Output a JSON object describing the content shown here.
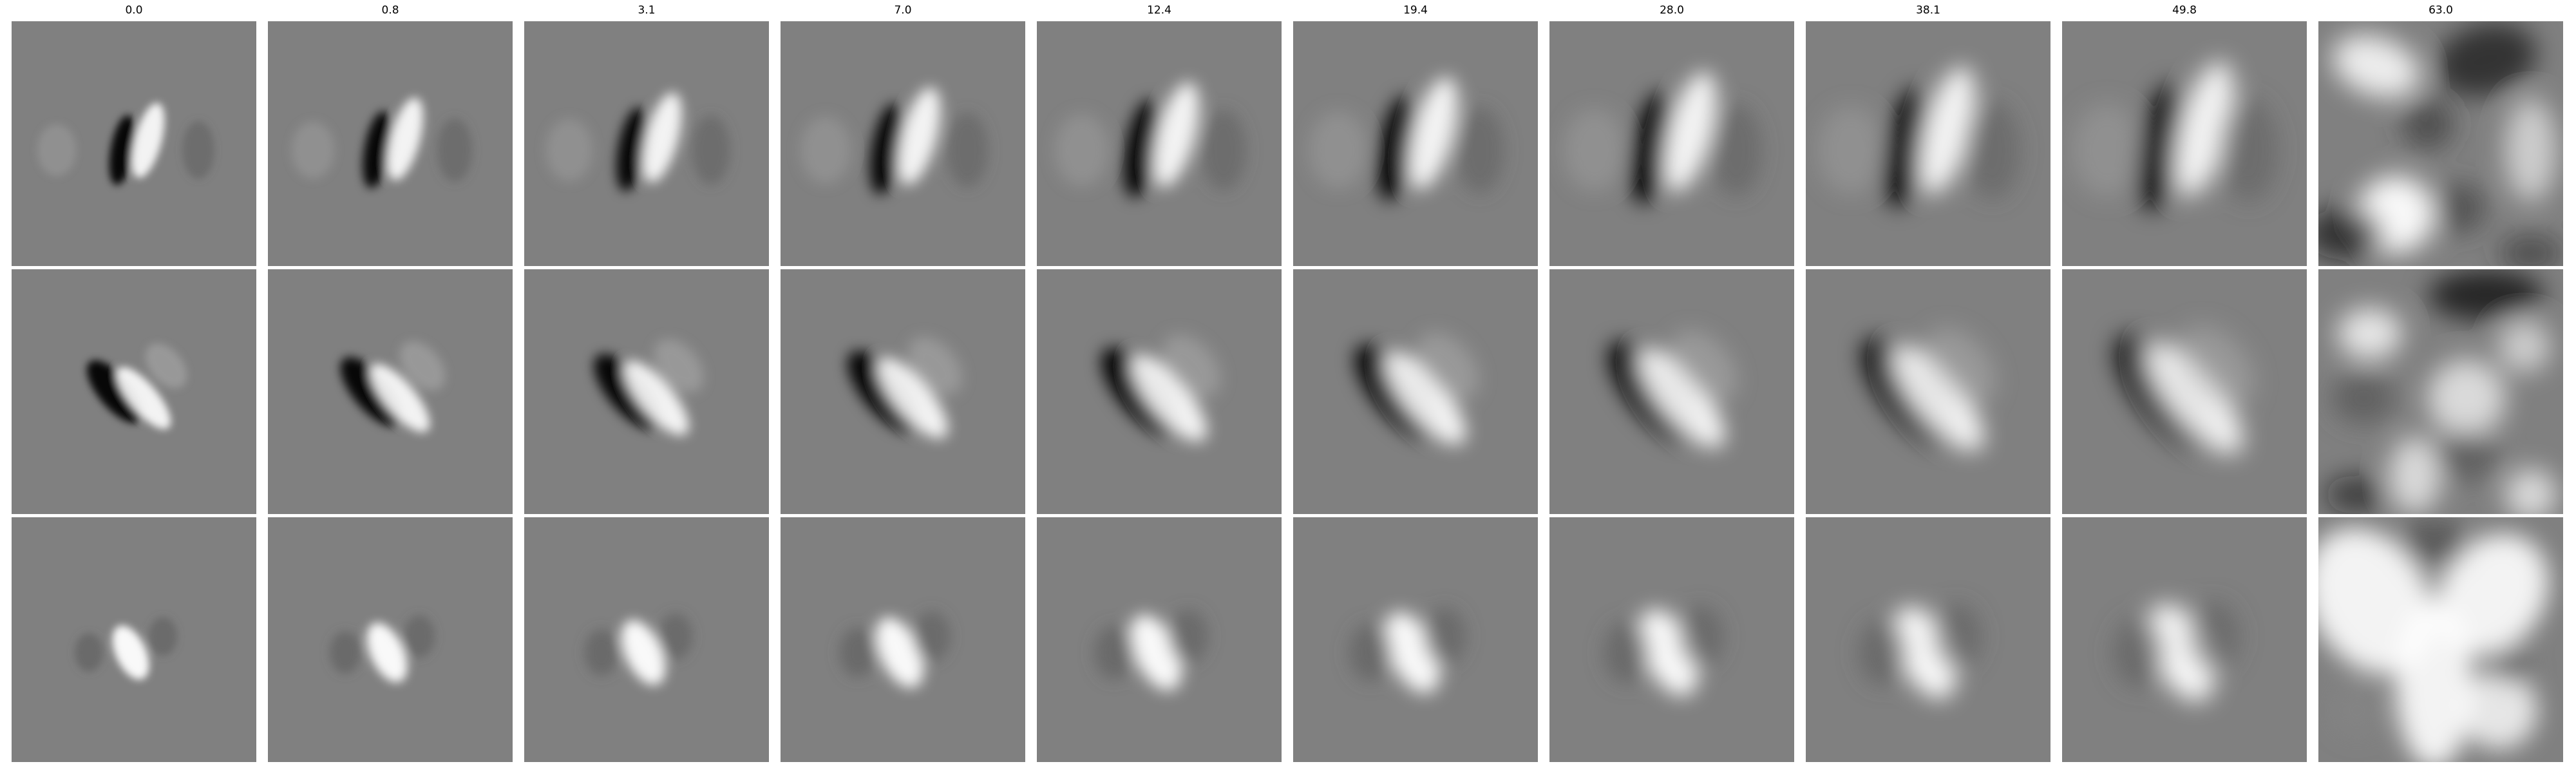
{
  "figure": {
    "column_titles": [
      "0.0",
      "0.8",
      "3.1",
      "7.0",
      "12.4",
      "19.4",
      "28.0",
      "38.1",
      "49.8",
      "63.0"
    ],
    "rows": [
      {
        "name": "row-1",
        "description_panels": [
          {
            "col": 0
          },
          {
            "col": 1
          },
          {
            "col": 2
          },
          {
            "col": 3
          },
          {
            "col": 4
          },
          {
            "col": 5
          },
          {
            "col": 6
          },
          {
            "col": 7
          },
          {
            "col": 8
          },
          {
            "col": 9
          }
        ]
      },
      {
        "name": "row-2",
        "description_panels": [
          {
            "col": 0
          },
          {
            "col": 1
          },
          {
            "col": 2
          },
          {
            "col": 3
          },
          {
            "col": 4
          },
          {
            "col": 5
          },
          {
            "col": 6
          },
          {
            "col": 7
          },
          {
            "col": 8
          },
          {
            "col": 9
          }
        ]
      },
      {
        "name": "row-3",
        "description_panels": [
          {
            "col": 0
          },
          {
            "col": 1
          },
          {
            "col": 2
          },
          {
            "col": 3
          },
          {
            "col": 4
          },
          {
            "col": 5
          },
          {
            "col": 6
          },
          {
            "col": 7
          },
          {
            "col": 8
          },
          {
            "col": 9
          }
        ]
      }
    ],
    "colors": {
      "background_gray": "#808080",
      "dark": "#000000",
      "light": "#ffffff"
    }
  }
}
